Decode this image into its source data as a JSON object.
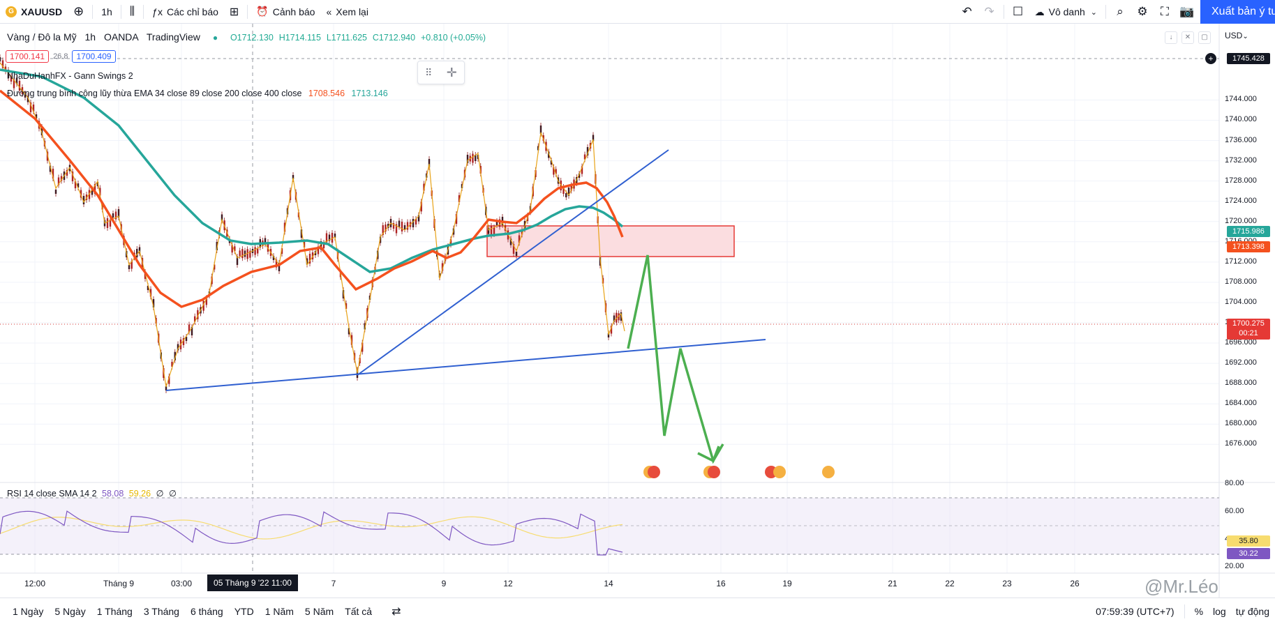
{
  "toolbar": {
    "symbol": "XAUUSD",
    "interval": "1h",
    "indicators_label": "Các chỉ báo",
    "alert_label": "Cảnh báo",
    "replay_label": "Xem lại",
    "layout_name": "Vô danh",
    "publish_label": "Xuất bản ý tưởng"
  },
  "legend": {
    "symbol_name": "Vàng / Đô la Mỹ",
    "interval": "1h",
    "exchange": "OANDA",
    "source": "TradingView",
    "open": "O1712.130",
    "high": "H1714.115",
    "low": "L1711.625",
    "close": "C1712.940",
    "change": "+0.810 (+0.05%)",
    "bid": "1700.141",
    "spread": "26.8",
    "ask": "1700.409",
    "indicator1": "NhaDuHanhFX - Gann Swings 2",
    "indicator2": "Đường trung bình cộng lũy thừa EMA 34 close 89 close 200 close 400 close",
    "ema_red": "1708.546",
    "ema_teal": "1713.146",
    "currency": "USD"
  },
  "price_axis": {
    "ticks": [
      "1744.000",
      "1740.000",
      "1736.000",
      "1732.000",
      "1728.000",
      "1724.000",
      "1720.000",
      "1716.000",
      "1712.000",
      "1708.000",
      "1704.000",
      "1700.000",
      "1696.000",
      "1692.000",
      "1688.000",
      "1684.000",
      "1680.000",
      "1676.000"
    ],
    "tag_top": "1745.428",
    "tag_teal": "1715.986",
    "tag_red": "1713.398",
    "tag_current": "1700.275",
    "tag_countdown": "00:21"
  },
  "rsi": {
    "label": "RSI 14 close SMA 14 2",
    "value": "58.08",
    "sma": "59.26",
    "extra1": "∅",
    "extra2": "∅",
    "ticks": [
      "80.00",
      "60.00",
      "40.00",
      "20.00"
    ],
    "tag_sma": "35.80",
    "tag_rsi": "30.22"
  },
  "time_axis": {
    "ticks": [
      "12:00",
      "Tháng 9",
      "03:00",
      "7",
      "9",
      "12",
      "14",
      "16",
      "19",
      "21",
      "22",
      "23",
      "26"
    ],
    "crosshair": "05 Tháng 9 '22   11:00"
  },
  "bottom": {
    "ranges": [
      "1 Ngày",
      "5 Ngày",
      "1 Tháng",
      "3 Tháng",
      "6 tháng",
      "YTD",
      "1 Năm",
      "5 Năm",
      "Tất cả"
    ],
    "clock": "07:59:39 (UTC+7)",
    "percent": "%",
    "log": "log",
    "auto": "tự động",
    "watermark": "@Mr.Léo"
  },
  "colors": {
    "ema_red": "#f4511e",
    "ema_teal": "#26a69a",
    "trendline": "#2f5fd0",
    "projection": "#4caf50",
    "zone": "#f8d7da",
    "candle": "#d32f2f",
    "accent": "#2962ff"
  }
}
